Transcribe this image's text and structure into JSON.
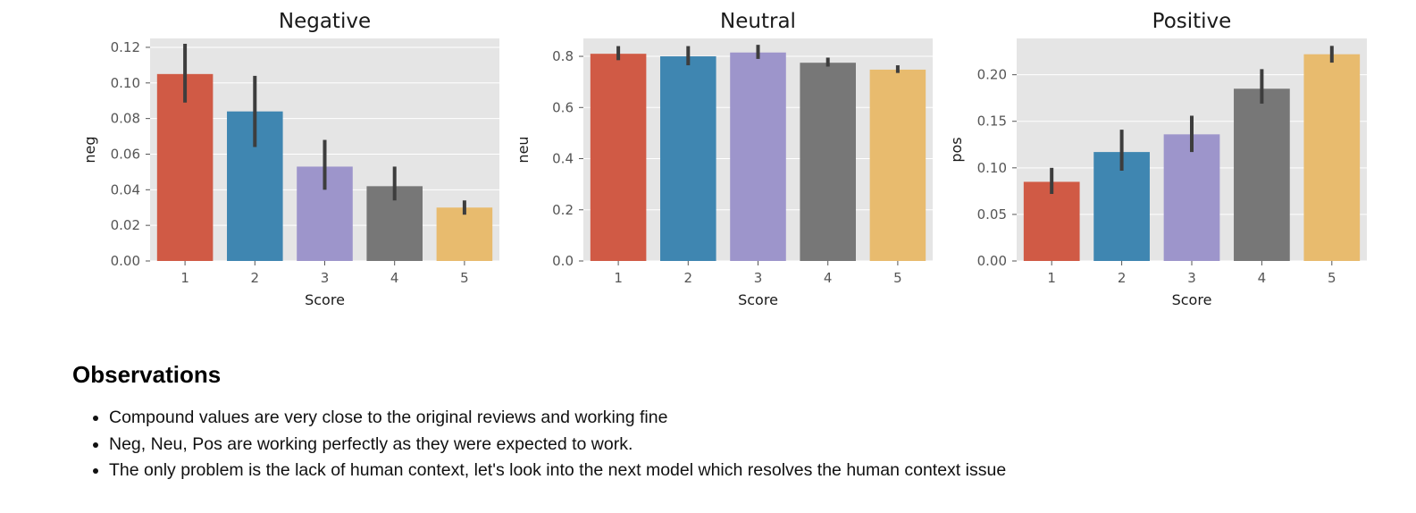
{
  "chart_data": [
    {
      "type": "bar",
      "title": "Negative",
      "xlabel": "Score",
      "ylabel": "neg",
      "categories": [
        "1",
        "2",
        "3",
        "4",
        "5"
      ],
      "values": [
        0.105,
        0.084,
        0.053,
        0.042,
        0.03
      ],
      "errors": [
        [
          0.089,
          0.122
        ],
        [
          0.064,
          0.104
        ],
        [
          0.04,
          0.068
        ],
        [
          0.034,
          0.053
        ],
        [
          0.026,
          0.034
        ]
      ],
      "ylim": [
        0,
        0.125
      ],
      "yticks": [
        "0.00",
        "0.02",
        "0.04",
        "0.06",
        "0.08",
        "0.10",
        "0.12"
      ],
      "ytick_values": [
        0,
        0.02,
        0.04,
        0.06,
        0.08,
        0.1,
        0.12
      ],
      "grid": true,
      "colors": [
        "#d05a45",
        "#3f86b1",
        "#9d95cb",
        "#777777",
        "#e8bb6e"
      ]
    },
    {
      "type": "bar",
      "title": "Neutral",
      "xlabel": "Score",
      "ylabel": "neu",
      "categories": [
        "1",
        "2",
        "3",
        "4",
        "5"
      ],
      "values": [
        0.81,
        0.8,
        0.815,
        0.775,
        0.748
      ],
      "errors": [
        [
          0.785,
          0.84
        ],
        [
          0.765,
          0.84
        ],
        [
          0.79,
          0.845
        ],
        [
          0.76,
          0.795
        ],
        [
          0.735,
          0.765
        ]
      ],
      "ylim": [
        0,
        0.87
      ],
      "yticks": [
        "0.0",
        "0.2",
        "0.4",
        "0.6",
        "0.8"
      ],
      "ytick_values": [
        0,
        0.2,
        0.4,
        0.6,
        0.8
      ],
      "grid": true,
      "colors": [
        "#d05a45",
        "#3f86b1",
        "#9d95cb",
        "#777777",
        "#e8bb6e"
      ]
    },
    {
      "type": "bar",
      "title": "Positive",
      "xlabel": "Score",
      "ylabel": "pos",
      "categories": [
        "1",
        "2",
        "3",
        "4",
        "5"
      ],
      "values": [
        0.085,
        0.117,
        0.136,
        0.185,
        0.222
      ],
      "errors": [
        [
          0.072,
          0.1
        ],
        [
          0.097,
          0.141
        ],
        [
          0.117,
          0.156
        ],
        [
          0.169,
          0.206
        ],
        [
          0.213,
          0.231
        ]
      ],
      "ylim": [
        0,
        0.239
      ],
      "yticks": [
        "0.00",
        "0.05",
        "0.10",
        "0.15",
        "0.20"
      ],
      "ytick_values": [
        0,
        0.05,
        0.1,
        0.15,
        0.2
      ],
      "grid": true,
      "colors": [
        "#d05a45",
        "#3f86b1",
        "#9d95cb",
        "#777777",
        "#e8bb6e"
      ]
    }
  ],
  "notes": {
    "heading": "Observations",
    "items": [
      "Compound values are very close to the original reviews and working fine",
      "Neg, Neu, Pos are working perfectly as they were expected to work.",
      "The only problem is the lack of human context, let's look into the next model which resolves the human context issue"
    ]
  }
}
